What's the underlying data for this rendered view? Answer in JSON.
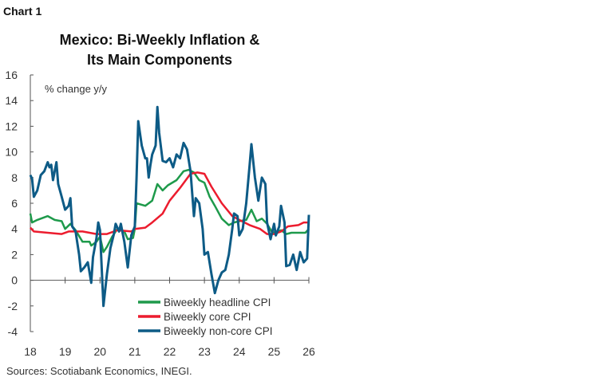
{
  "chart_label": "Chart 1",
  "source": "Sources: Scotiabank Economics, INEGI.",
  "chart_data": {
    "type": "line",
    "title": [
      "Mexico: Bi-Weekly Inflation &",
      "Its Main Components"
    ],
    "ylabel": "% change y/y",
    "xlabel": "",
    "ylim": [
      -4,
      16
    ],
    "xlim": [
      2018,
      2026
    ],
    "yticks": [
      -4,
      -2,
      0,
      2,
      4,
      6,
      8,
      10,
      12,
      14,
      16
    ],
    "xticks": [
      2018,
      2019,
      2020,
      2021,
      2022,
      2023,
      2024,
      2025,
      2026
    ],
    "xtick_labels": [
      "18",
      "19",
      "20",
      "21",
      "22",
      "23",
      "24",
      "25",
      "26"
    ],
    "legend_position": "bottom-right",
    "series": [
      {
        "name": "Biweekly headline CPI",
        "color": "#1e9a4b",
        "x": [
          2018,
          2018.05,
          2018.2,
          2018.5,
          2018.7,
          2018.9,
          2019.0,
          2019.15,
          2019.3,
          2019.5,
          2019.7,
          2019.75,
          2019.9,
          2020.0,
          2020.1,
          2020.2,
          2020.35,
          2020.5,
          2020.7,
          2020.8,
          2020.95,
          2021.0,
          2021.05,
          2021.3,
          2021.5,
          2021.65,
          2021.8,
          2021.95,
          2022.2,
          2022.4,
          2022.55,
          2022.7,
          2022.85,
          2023.0,
          2023.15,
          2023.3,
          2023.5,
          2023.7,
          2023.85,
          2024.0,
          2024.2,
          2024.35,
          2024.5,
          2024.65,
          2024.8,
          2024.95,
          2025.1,
          2025.2,
          2025.35,
          2025.5,
          2025.7,
          2025.9,
          2026.0
        ],
        "y": [
          5.2,
          4.5,
          4.7,
          5.0,
          4.7,
          4.6,
          4.0,
          4.4,
          3.9,
          3.0,
          3.0,
          2.7,
          3.0,
          3.4,
          2.2,
          2.6,
          3.4,
          4.0,
          3.8,
          3.2,
          3.3,
          4.0,
          6.0,
          5.8,
          6.2,
          7.5,
          7.0,
          7.4,
          7.8,
          8.5,
          8.6,
          8.4,
          7.8,
          7.6,
          6.5,
          5.8,
          4.8,
          4.3,
          4.5,
          4.6,
          4.7,
          5.5,
          4.6,
          4.8,
          4.4,
          3.7,
          3.8,
          3.9,
          3.6,
          3.7,
          3.7,
          3.7,
          4.0
        ]
      },
      {
        "name": "Biweekly core CPI",
        "color": "#ec1c2e",
        "x": [
          2018,
          2018.1,
          2018.5,
          2018.9,
          2019.1,
          2019.5,
          2019.9,
          2020.2,
          2020.5,
          2020.9,
          2021.0,
          2021.3,
          2021.5,
          2021.8,
          2022.0,
          2022.3,
          2022.6,
          2022.8,
          2023.0,
          2023.2,
          2023.5,
          2023.8,
          2024.0,
          2024.3,
          2024.6,
          2024.8,
          2025.0,
          2025.2,
          2025.4,
          2025.7,
          2025.85,
          2026.0
        ],
        "y": [
          4.1,
          3.8,
          3.7,
          3.6,
          3.8,
          3.8,
          3.6,
          3.6,
          3.9,
          3.8,
          4.0,
          4.1,
          4.5,
          5.2,
          6.2,
          7.2,
          8.3,
          8.4,
          8.3,
          7.3,
          6.0,
          5.0,
          4.7,
          4.3,
          4.0,
          3.6,
          3.6,
          3.8,
          4.2,
          4.3,
          4.5,
          4.5
        ]
      },
      {
        "name": "Biweekly non-core CPI",
        "color": "#0d5b86",
        "x": [
          2018,
          2018.05,
          2018.1,
          2018.2,
          2018.3,
          2018.4,
          2018.5,
          2018.55,
          2018.6,
          2018.65,
          2018.75,
          2018.8,
          2018.9,
          2019.0,
          2019.1,
          2019.15,
          2019.2,
          2019.3,
          2019.4,
          2019.45,
          2019.55,
          2019.65,
          2019.7,
          2019.75,
          2019.8,
          2019.9,
          2019.95,
          2020.0,
          2020.05,
          2020.1,
          2020.2,
          2020.3,
          2020.4,
          2020.45,
          2020.55,
          2020.6,
          2020.7,
          2020.8,
          2020.9,
          2021.0,
          2021.05,
          2021.1,
          2021.2,
          2021.3,
          2021.35,
          2021.4,
          2021.45,
          2021.5,
          2021.6,
          2021.65,
          2021.7,
          2021.8,
          2021.9,
          2022.0,
          2022.1,
          2022.2,
          2022.3,
          2022.4,
          2022.5,
          2022.6,
          2022.7,
          2022.75,
          2022.85,
          2022.95,
          2023.0,
          2023.1,
          2023.2,
          2023.3,
          2023.4,
          2023.5,
          2023.6,
          2023.7,
          2023.8,
          2023.85,
          2023.95,
          2024.0,
          2024.1,
          2024.2,
          2024.3,
          2024.35,
          2024.45,
          2024.55,
          2024.65,
          2024.75,
          2024.8,
          2024.9,
          2025.0,
          2025.05,
          2025.15,
          2025.2,
          2025.3,
          2025.35,
          2025.45,
          2025.55,
          2025.65,
          2025.75,
          2025.85,
          2025.95,
          2026.0
        ],
        "y": [
          8.2,
          7.9,
          6.5,
          7.0,
          8.2,
          8.5,
          9.2,
          8.8,
          9.0,
          7.8,
          9.2,
          7.5,
          6.5,
          5.5,
          5.8,
          6.4,
          4.2,
          3.8,
          2.0,
          0.7,
          1.0,
          1.4,
          0.6,
          -0.2,
          1.8,
          3.3,
          4.5,
          3.9,
          1.0,
          -2.0,
          0.5,
          2.5,
          3.6,
          4.4,
          3.8,
          4.4,
          3.0,
          1.0,
          3.5,
          4.2,
          8.0,
          12.4,
          10.5,
          9.5,
          9.5,
          8.0,
          9.0,
          9.8,
          10.5,
          13.5,
          11.5,
          9.3,
          9.2,
          9.5,
          8.8,
          9.8,
          9.5,
          10.7,
          10.2,
          8.5,
          5.0,
          6.4,
          6.0,
          4.0,
          2.0,
          2.2,
          0.5,
          -1.0,
          0.0,
          0.6,
          0.8,
          2.0,
          4.0,
          5.2,
          5.0,
          3.5,
          4.0,
          6.0,
          9.0,
          10.6,
          8.0,
          6.2,
          8.0,
          7.5,
          4.5,
          3.2,
          4.4,
          3.5,
          4.2,
          5.8,
          4.5,
          1.1,
          1.2,
          2.0,
          0.8,
          2.2,
          1.4,
          1.7,
          5.1
        ]
      }
    ]
  }
}
